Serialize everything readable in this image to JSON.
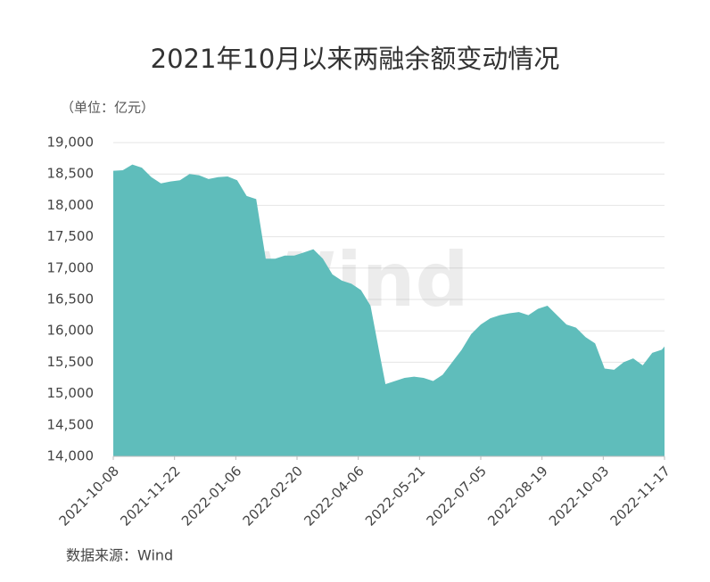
{
  "chart_data": {
    "type": "area",
    "title": "2021年10月以来两融余额变动情况",
    "unit_note": "（单位：亿元）",
    "source": "数据来源：Wind",
    "watermark": "Wind",
    "color": "#5fbdbb",
    "grid": true,
    "x": [
      "2021-10-08",
      "2021-10-15",
      "2021-10-22",
      "2021-10-29",
      "2021-11-05",
      "2021-11-12",
      "2021-11-19",
      "2021-11-26",
      "2021-12-03",
      "2021-12-10",
      "2021-12-17",
      "2021-12-24",
      "2021-12-31",
      "2022-01-07",
      "2022-01-14",
      "2022-01-21",
      "2022-01-28",
      "2022-02-04",
      "2022-02-11",
      "2022-02-18",
      "2022-02-25",
      "2022-03-04",
      "2022-03-11",
      "2022-03-18",
      "2022-03-25",
      "2022-04-01",
      "2022-04-08",
      "2022-04-15",
      "2022-04-22",
      "2022-04-26",
      "2022-05-03",
      "2022-05-10",
      "2022-05-17",
      "2022-05-24",
      "2022-05-31",
      "2022-06-07",
      "2022-06-14",
      "2022-06-21",
      "2022-06-28",
      "2022-07-05",
      "2022-07-12",
      "2022-07-19",
      "2022-07-26",
      "2022-08-02",
      "2022-08-09",
      "2022-08-16",
      "2022-08-23",
      "2022-08-30",
      "2022-09-06",
      "2022-09-13",
      "2022-09-20",
      "2022-09-27",
      "2022-10-04",
      "2022-10-11",
      "2022-10-18",
      "2022-10-25",
      "2022-11-01",
      "2022-11-08",
      "2022-11-15",
      "2022-11-17"
    ],
    "values": [
      18550,
      18560,
      18650,
      18600,
      18450,
      18350,
      18380,
      18400,
      18500,
      18480,
      18420,
      18450,
      18460,
      18400,
      18150,
      18100,
      17150,
      17150,
      17200,
      17200,
      17250,
      17300,
      17150,
      16900,
      16800,
      16750,
      16650,
      16400,
      15600,
      15150,
      15200,
      15250,
      15270,
      15250,
      15200,
      15300,
      15500,
      15700,
      15950,
      16100,
      16200,
      16250,
      16280,
      16300,
      16250,
      16350,
      16400,
      16250,
      16100,
      16050,
      15900,
      15800,
      15400,
      15380,
      15500,
      15560,
      15450,
      15650,
      15700,
      15750
    ],
    "xlim": [
      "2021-10-08",
      "2022-11-17"
    ],
    "xticks": [
      "2021-10-08",
      "2021-11-22",
      "2022-01-06",
      "2022-02-20",
      "2022-04-06",
      "2022-05-21",
      "2022-07-05",
      "2022-08-19",
      "2022-10-03",
      "2022-11-17"
    ],
    "ylim": [
      14000,
      19000
    ],
    "yticks": [
      {
        "value": 14000,
        "label": "14,000"
      },
      {
        "value": 14500,
        "label": "14,500"
      },
      {
        "value": 15000,
        "label": "15,000"
      },
      {
        "value": 15500,
        "label": "15,500"
      },
      {
        "value": 16000,
        "label": "16,000"
      },
      {
        "value": 16500,
        "label": "16,500"
      },
      {
        "value": 17000,
        "label": "17,000"
      },
      {
        "value": 17500,
        "label": "17,500"
      },
      {
        "value": 18000,
        "label": "18,000"
      },
      {
        "value": 18500,
        "label": "18,500"
      },
      {
        "value": 19000,
        "label": "19,000"
      }
    ]
  }
}
